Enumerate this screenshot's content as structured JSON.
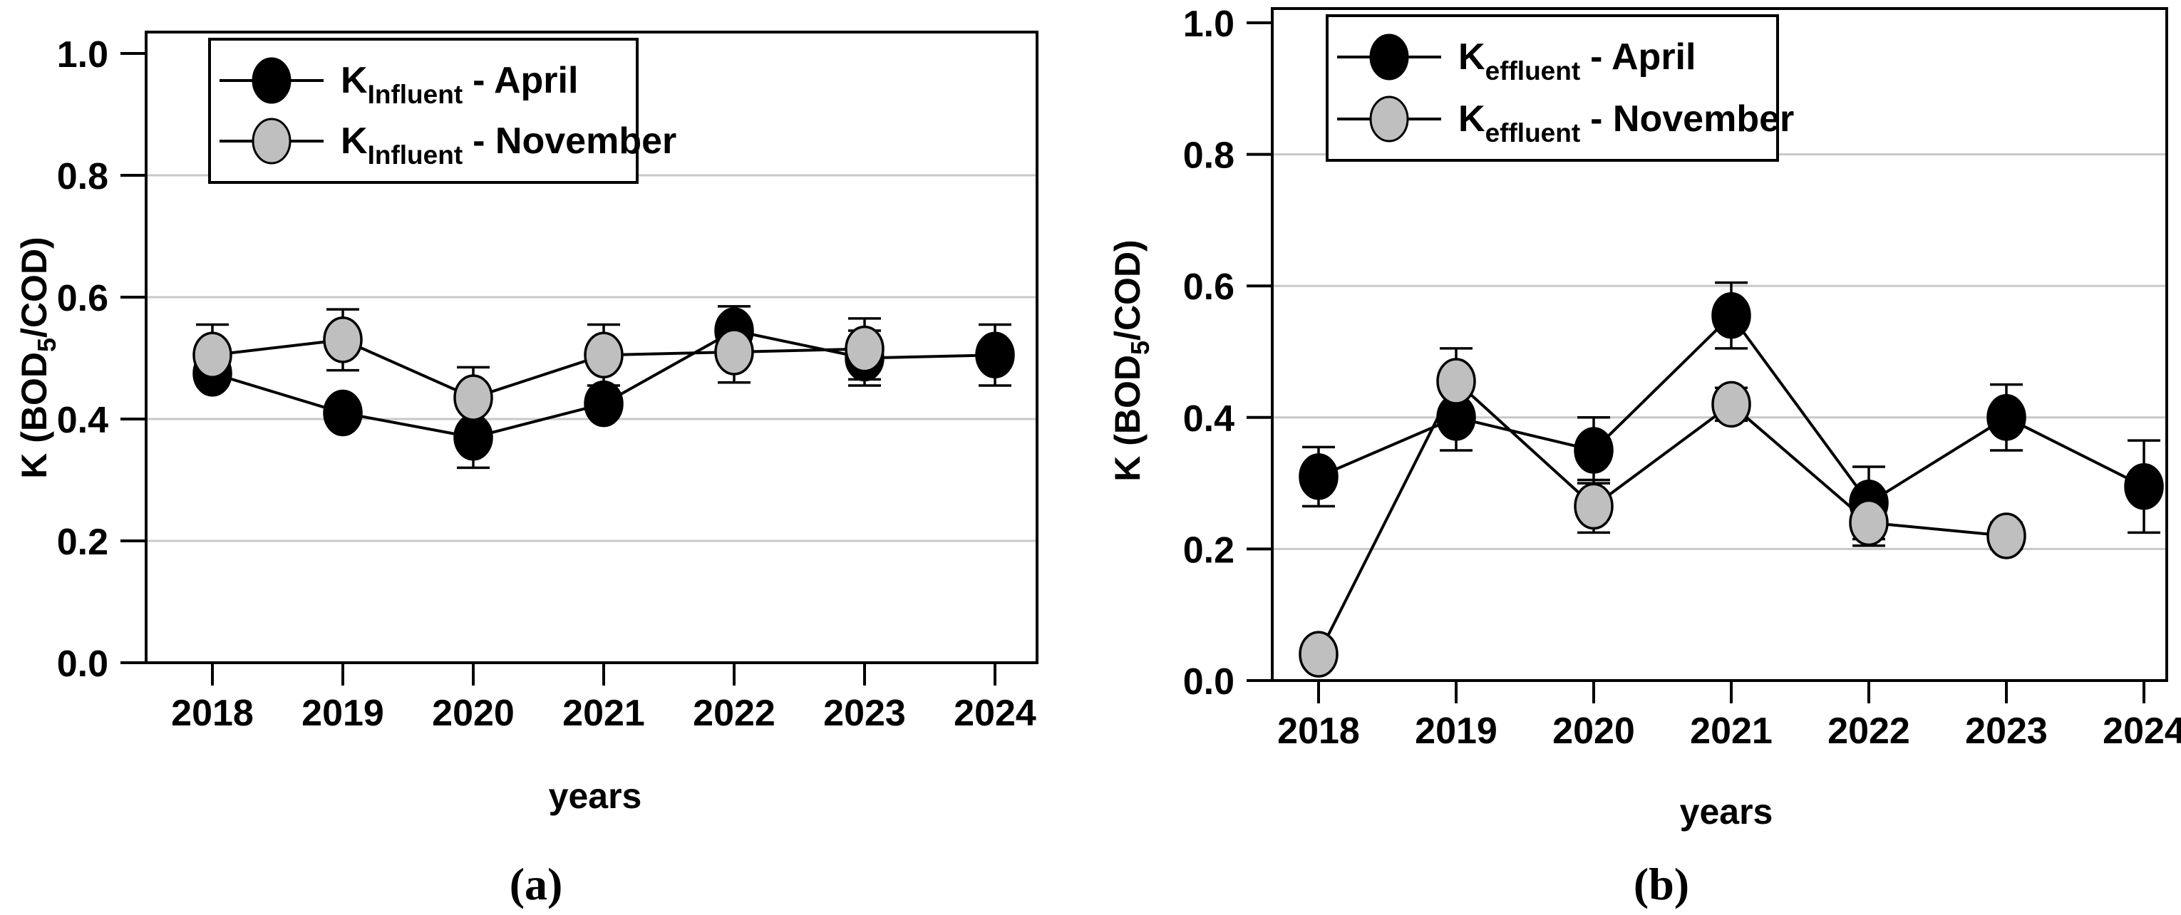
{
  "figure": {
    "background": "#ffffff",
    "frame_color": "#000000",
    "grid_color": "#c8c8c8",
    "april_color": "#000000",
    "november_color": "#bfbfbf",
    "x_axis_label": "years",
    "y_axis_label": "K (BOD5/COD)",
    "y_axis_label_parts": {
      "pre": "K (BOD",
      "sub": "5",
      "post": "/COD)"
    }
  },
  "chart_data": [
    {
      "type": "line",
      "panel": "a",
      "caption": "(a)",
      "categories": [
        "2018",
        "2019",
        "2020",
        "2021",
        "2022",
        "2023",
        "2024"
      ],
      "xlabel": "years",
      "ylabel": "K (BOD5/COD)",
      "ylabel_parts": {
        "pre": "K (BOD",
        "sub": "5",
        "post": "/COD)"
      },
      "ylim": [
        0.0,
        1.0
      ],
      "yticks": [
        0.0,
        0.2,
        0.4,
        0.6,
        0.8,
        1.0
      ],
      "grid": "horizontal-light",
      "legend_position": "top-left",
      "series": [
        {
          "name": "K_Influent - April",
          "legend": {
            "main": "K",
            "sub": "Influent",
            "suffix": "- April"
          },
          "marker_fill": "#000000",
          "values": [
            0.475,
            0.41,
            0.37,
            0.425,
            0.545,
            0.5,
            0.505
          ],
          "errors": [
            0.02,
            0,
            0.05,
            0.015,
            0.04,
            0.045,
            0.05
          ]
        },
        {
          "name": "K_Influent - November",
          "legend": {
            "main": "K",
            "sub": "Influent",
            "suffix": "- November"
          },
          "marker_fill": "#bfbfbf",
          "values": [
            0.505,
            0.53,
            0.435,
            0.505,
            0.51,
            0.515,
            null
          ],
          "errors": [
            0.05,
            0.05,
            0.05,
            0.05,
            0.05,
            0.05,
            null
          ]
        }
      ]
    },
    {
      "type": "line",
      "panel": "b",
      "caption": "(b)",
      "categories": [
        "2018",
        "2019",
        "2020",
        "2021",
        "2022",
        "2023",
        "2024"
      ],
      "xlabel": "years",
      "ylabel": "K (BOD5/COD)",
      "ylabel_parts": {
        "pre": "K (BOD",
        "sub": "5",
        "post": "/COD)"
      },
      "ylim": [
        0.0,
        1.0
      ],
      "yticks": [
        0.0,
        0.2,
        0.4,
        0.6,
        0.8,
        1.0
      ],
      "grid": "horizontal-light",
      "legend_position": "top-left",
      "series": [
        {
          "name": "K_effluent - April",
          "legend": {
            "main": "K",
            "sub": "effluent",
            "suffix": "- April"
          },
          "marker_fill": "#000000",
          "values": [
            0.31,
            0.4,
            0.35,
            0.555,
            0.27,
            0.4,
            0.295
          ],
          "errors": [
            0.045,
            0.05,
            0.05,
            0.05,
            0.055,
            0.05,
            0.07
          ]
        },
        {
          "name": "K_effluent - November",
          "legend": {
            "main": "K",
            "sub": "effluent",
            "suffix": "- November"
          },
          "marker_fill": "#bfbfbf",
          "values": [
            0.04,
            0.455,
            0.265,
            0.42,
            0.24,
            0.22,
            null
          ],
          "errors": [
            0,
            0.05,
            0.04,
            0.025,
            0.035,
            0.02,
            null
          ]
        }
      ]
    }
  ]
}
